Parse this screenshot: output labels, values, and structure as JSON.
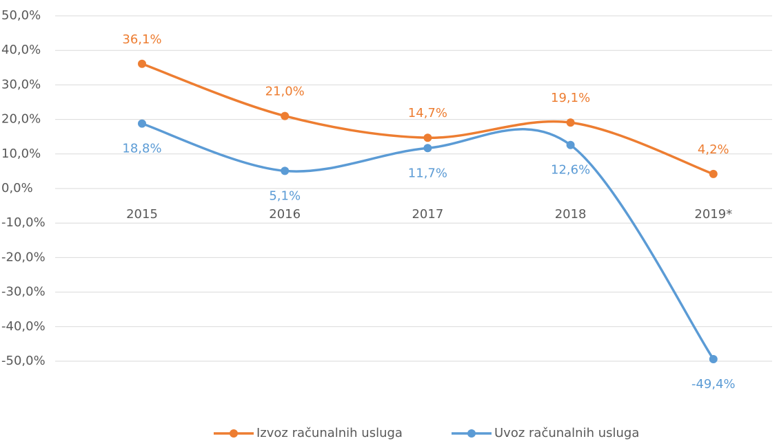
{
  "chart_data": {
    "type": "line",
    "categories": [
      "2015",
      "2016",
      "2017",
      "2018",
      "2019*"
    ],
    "series": [
      {
        "name": "Izvoz računalnih usluga",
        "color": "#ED7D31",
        "values": [
          36.1,
          21.0,
          14.7,
          19.1,
          4.2
        ],
        "value_labels": [
          "36,1%",
          "21,0%",
          "14,7%",
          "19,1%",
          "4,2%"
        ]
      },
      {
        "name": "Uvoz računalnih usluga",
        "color": "#5B9BD5",
        "values": [
          18.8,
          5.1,
          11.7,
          12.6,
          -49.4
        ],
        "value_labels": [
          "18,8%",
          "5,1%",
          "11,7%",
          "12,6%",
          "-49,4%"
        ]
      }
    ],
    "ylim": [
      -50,
      50
    ],
    "yticks": [
      {
        "value": -50,
        "label": "-50,0%"
      },
      {
        "value": -40,
        "label": "-40,0%"
      },
      {
        "value": -30,
        "label": "-30,0%"
      },
      {
        "value": -20,
        "label": "-20,0%"
      },
      {
        "value": -10,
        "label": "-10,0%"
      },
      {
        "value": 0,
        "label": "0,0%"
      },
      {
        "value": 10,
        "label": "10,0%"
      },
      {
        "value": 20,
        "label": "20,0%"
      },
      {
        "value": 30,
        "label": "30,0%"
      },
      {
        "value": 40,
        "label": "40,0%"
      },
      {
        "value": 50,
        "label": "50,0%"
      }
    ],
    "grid": true,
    "smooth": true,
    "legend": "bottom"
  }
}
